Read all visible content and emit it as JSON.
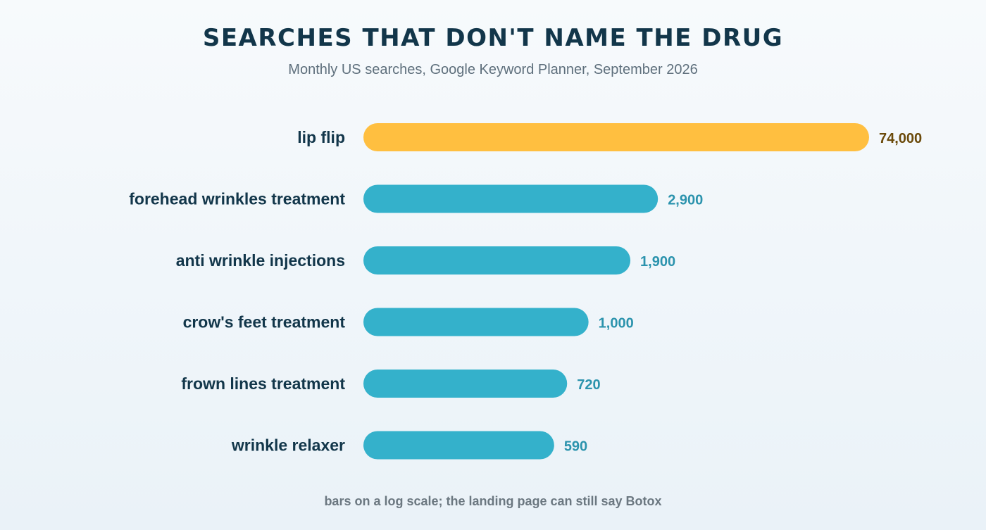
{
  "title": "SEARCHES THAT DON'T NAME THE DRUG",
  "subtitle": "Monthly US searches, Google Keyword Planner, September 2026",
  "note": "bars on a log scale; the landing page can still say Botox",
  "colors": {
    "highlight_bar": "#ffbf40",
    "highlight_value": "#6b4a0a",
    "bar": "#34b1cb",
    "value": "#2b93ad",
    "category_text": "#12364a"
  },
  "chart_data": {
    "type": "bar",
    "orientation": "horizontal",
    "scale": "log",
    "categories": [
      "lip flip",
      "forehead wrinkles treatment",
      "anti wrinkle injections",
      "crow's feet treatment",
      "frown lines treatment",
      "wrinkle relaxer"
    ],
    "values": [
      74000,
      2900,
      1900,
      1000,
      720,
      590
    ],
    "value_labels": [
      "74,000",
      "2,900",
      "1,900",
      "1,000",
      "720",
      "590"
    ],
    "highlight_index": 0,
    "xlabel": "",
    "ylabel": "",
    "grid": false,
    "legend": "none"
  }
}
